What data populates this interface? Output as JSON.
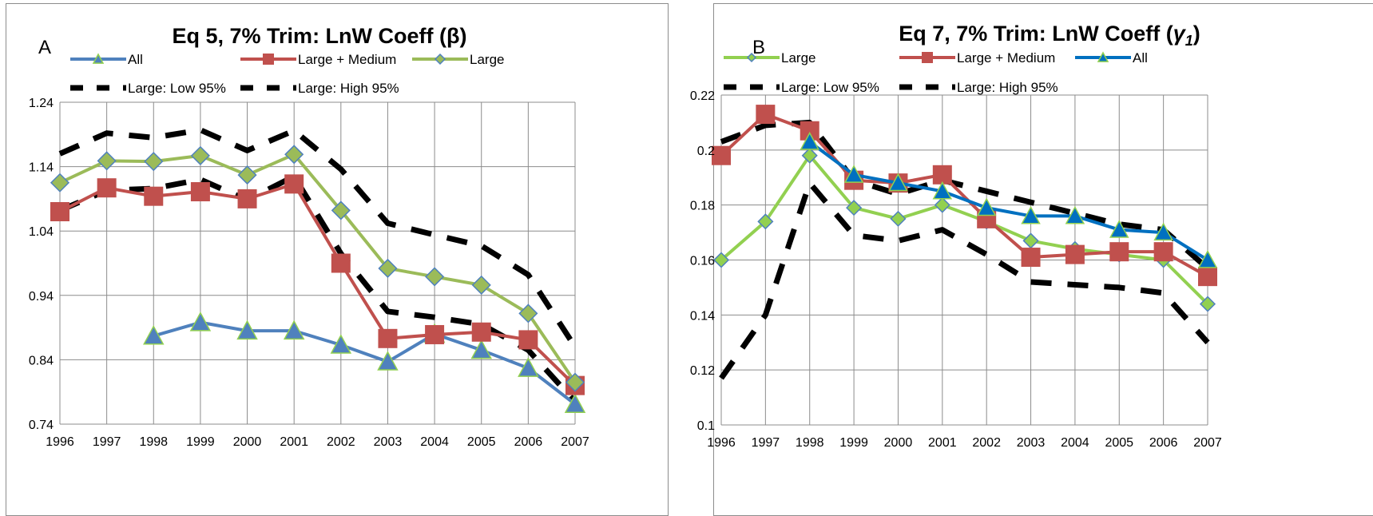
{
  "chart_data": [
    {
      "type": "line",
      "panel_label": "A",
      "title": "Eq 5, 7% Trim:  LnW Coeff (β)",
      "x": [
        "1996",
        "1997",
        "1998",
        "1999",
        "2000",
        "2001",
        "2002",
        "2003",
        "2004",
        "2005",
        "2006",
        "2007"
      ],
      "ylim": [
        0.74,
        1.24
      ],
      "yticks": [
        "1.24",
        "1.14",
        "1.04",
        "0.94",
        "0.84",
        "0.74"
      ],
      "grid": true,
      "legend_position": "top",
      "series": [
        {
          "name": "All",
          "color": "#4f81bd",
          "marker": "triangle",
          "dash": false,
          "values": [
            null,
            null,
            0.877,
            0.898,
            0.885,
            0.885,
            0.863,
            0.837,
            0.88,
            0.855,
            0.827,
            0.771
          ]
        },
        {
          "name": "Large + Medium",
          "color": "#c0504d",
          "marker": "square",
          "dash": false,
          "values": [
            1.07,
            1.107,
            1.094,
            1.101,
            1.09,
            1.113,
            0.99,
            0.873,
            0.879,
            0.883,
            0.871,
            0.8
          ]
        },
        {
          "name": "Large",
          "color": "#9bbb59",
          "marker": "diamond",
          "dash": false,
          "values": [
            1.115,
            1.149,
            1.148,
            1.157,
            1.127,
            1.159,
            1.072,
            0.982,
            0.969,
            0.956,
            0.912,
            0.805
          ]
        },
        {
          "name": "Large: Low 95%",
          "color": "#000000",
          "marker": "none",
          "dash": true,
          "values": [
            1.072,
            1.103,
            1.106,
            1.12,
            1.088,
            1.125,
            1.005,
            0.915,
            0.906,
            0.895,
            0.855,
            0.775
          ]
        },
        {
          "name": "Large: High 95%",
          "color": "#000000",
          "marker": "none",
          "dash": true,
          "values": [
            1.16,
            1.192,
            1.185,
            1.197,
            1.165,
            1.196,
            1.136,
            1.052,
            1.034,
            1.017,
            0.972,
            0.86
          ]
        }
      ]
    },
    {
      "type": "line",
      "panel_label": "B",
      "title": "Eq 7, 7% Trim: LnW Coeff (",
      "title_symbol": "γ",
      "title_subscript": "1",
      "title_close": ")",
      "x": [
        "1996",
        "1997",
        "1998",
        "1999",
        "2000",
        "2001",
        "2002",
        "2003",
        "2004",
        "2005",
        "2006",
        "2007"
      ],
      "ylim": [
        0.1,
        0.22
      ],
      "yticks": [
        "0.22",
        "0.2",
        "0.18",
        "0.16",
        "0.14",
        "0.12",
        "0.1"
      ],
      "grid": true,
      "legend_position": "top",
      "series": [
        {
          "name": "Large",
          "color": "#92d050",
          "marker": "diamond",
          "dash": false,
          "values": [
            0.16,
            0.174,
            0.198,
            0.179,
            0.175,
            0.18,
            0.174,
            0.167,
            0.164,
            0.162,
            0.16,
            0.144
          ]
        },
        {
          "name": "Large + Medium",
          "color": "#c0504d",
          "marker": "square",
          "dash": false,
          "values": [
            0.198,
            0.213,
            0.207,
            0.189,
            0.188,
            0.191,
            0.175,
            0.161,
            0.162,
            0.163,
            0.163,
            0.154
          ]
        },
        {
          "name": "All",
          "color": "#0070c0",
          "marker": "triangle",
          "dash": false,
          "values": [
            null,
            null,
            0.203,
            0.191,
            0.188,
            0.185,
            0.179,
            0.176,
            0.176,
            0.171,
            0.17,
            0.16
          ]
        },
        {
          "name": "Large: Low 95%",
          "color": "#000000",
          "marker": "none",
          "dash": true,
          "values": [
            0.117,
            0.14,
            0.188,
            0.169,
            0.167,
            0.171,
            0.162,
            0.152,
            0.151,
            0.15,
            0.148,
            0.13
          ]
        },
        {
          "name": "Large: High 95%",
          "color": "#000000",
          "marker": "none",
          "dash": true,
          "values": [
            0.203,
            0.209,
            0.21,
            0.189,
            0.184,
            0.189,
            0.185,
            0.181,
            0.177,
            0.173,
            0.171,
            0.157
          ]
        }
      ]
    }
  ]
}
